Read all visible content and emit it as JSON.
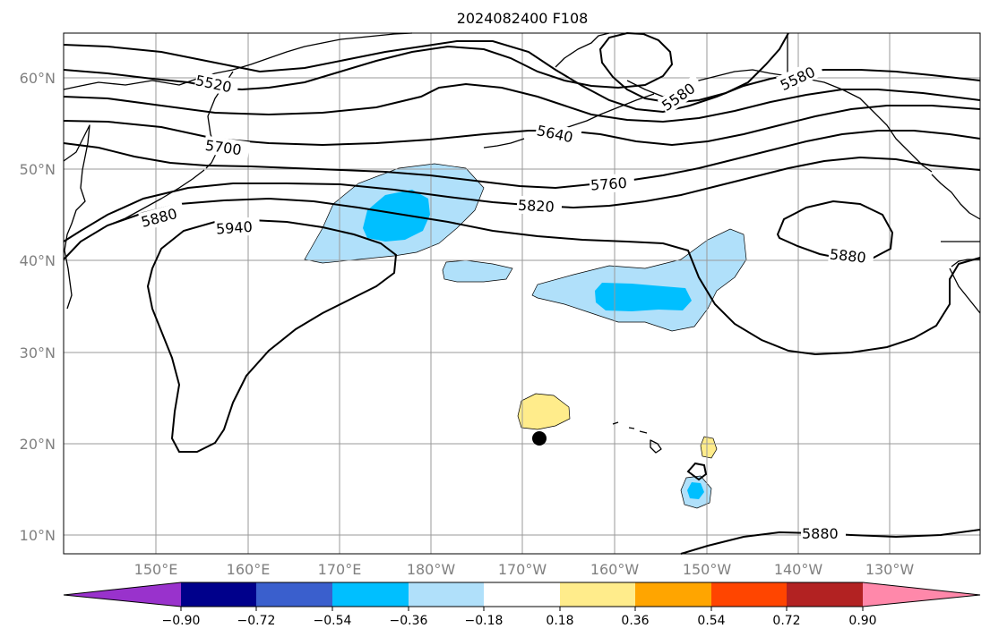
{
  "title": "2024082400 F108",
  "map": {
    "lon_labels": [
      "150°E",
      "160°E",
      "170°E",
      "180°W",
      "170°W",
      "160°W",
      "150°W",
      "140°W",
      "130°W"
    ],
    "lat_labels": [
      "60°N",
      "50°N",
      "40°N",
      "30°N",
      "20°N",
      "10°N"
    ],
    "contour_labels": [
      "5520",
      "5580",
      "5640",
      "5700",
      "5760",
      "5820",
      "5880",
      "5940",
      "5580",
      "5880",
      "5880"
    ]
  },
  "colorbar": {
    "tick_labels": [
      "−0.90",
      "−0.72",
      "−0.54",
      "−0.36",
      "−0.18",
      "0.18",
      "0.36",
      "0.54",
      "0.72",
      "0.90"
    ],
    "colors": [
      "#9932cc",
      "#00008b",
      "#3a5fcd",
      "#00bfff",
      "#b0e0fa",
      "#ffffff",
      "#ffec8b",
      "#ffa500",
      "#ff4500",
      "#b22222",
      "#ff88aa"
    ]
  }
}
